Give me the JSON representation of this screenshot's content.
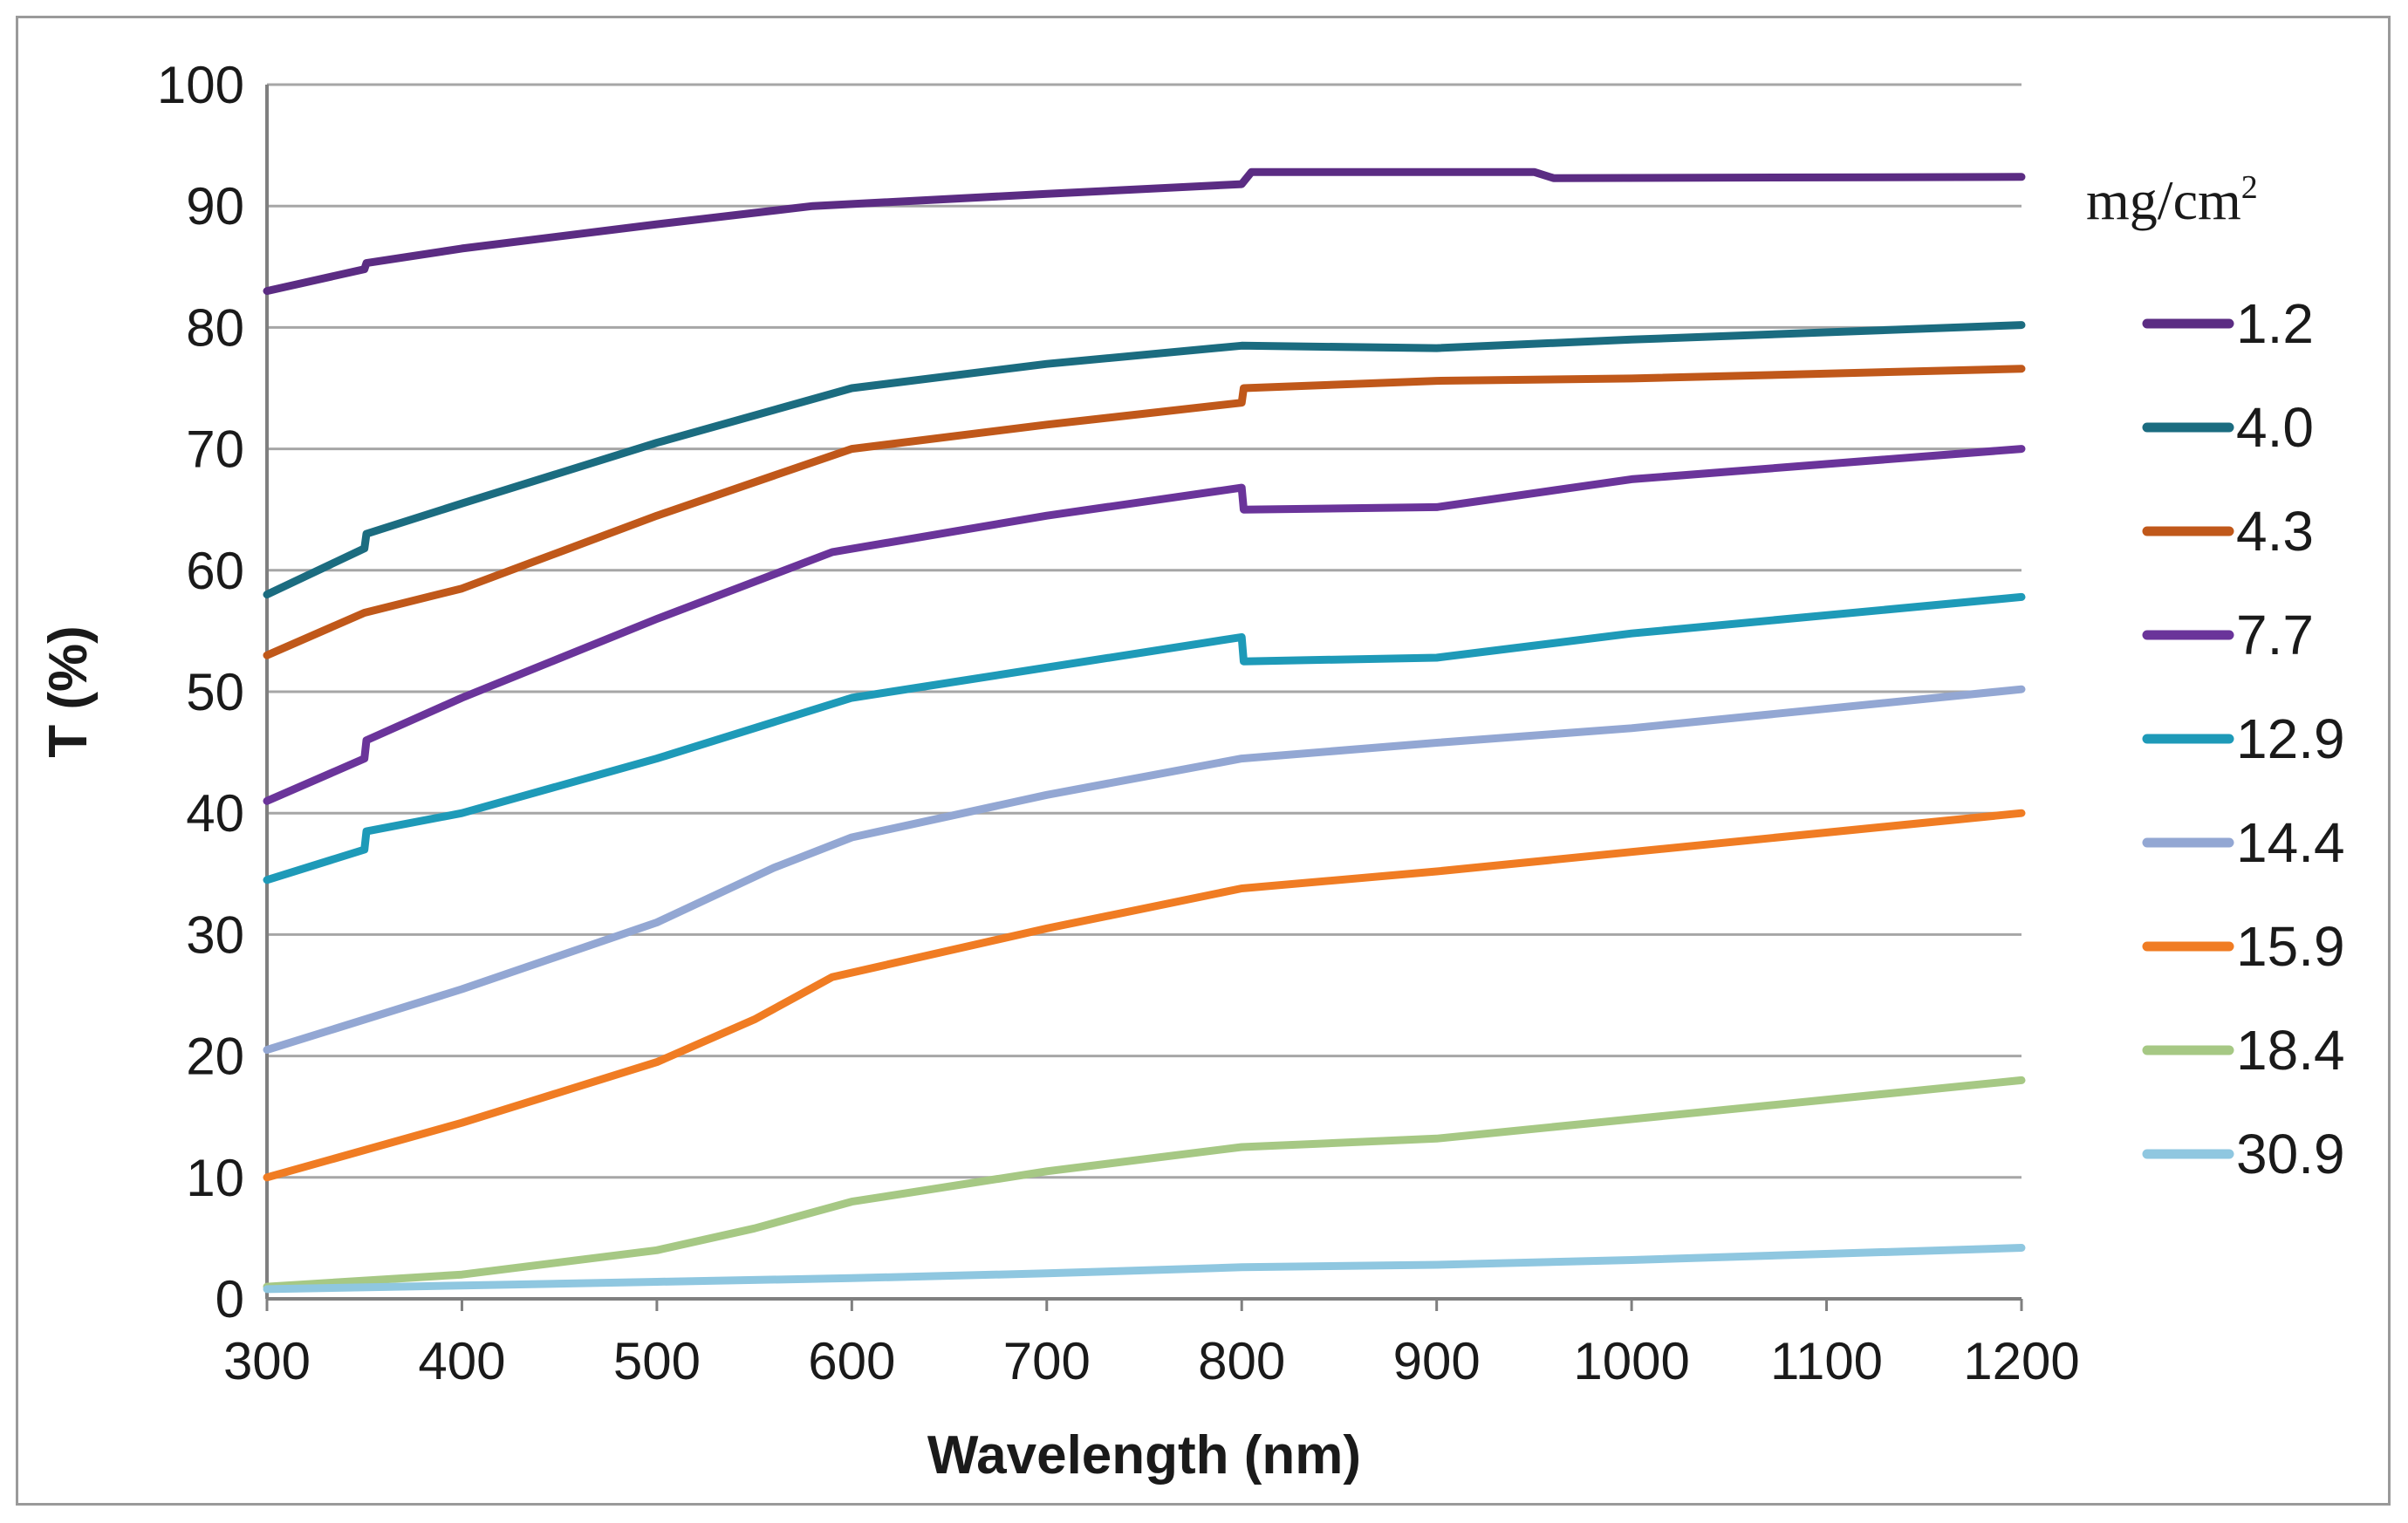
{
  "chart_data": {
    "type": "line",
    "title": "",
    "xlabel": "Wavelength (nm)",
    "ylabel": "T (%)",
    "xlim": [
      300,
      1200
    ],
    "ylim": [
      0,
      100
    ],
    "xticks": [
      300,
      400,
      500,
      600,
      700,
      800,
      900,
      1000,
      1100,
      1200
    ],
    "yticks": [
      0,
      10,
      20,
      30,
      40,
      50,
      60,
      70,
      80,
      90,
      100
    ],
    "grid": "horizontal",
    "legend": {
      "position": "right",
      "title": "mg/cm",
      "title_superscript": "2"
    },
    "series": [
      {
        "name": "1.2",
        "color": "#5B2C83",
        "x": [
          300,
          350,
          351,
          400,
          500,
          580,
          700,
          800,
          805,
          950,
          960,
          1200
        ],
        "y": [
          83,
          84.8,
          85.3,
          86.5,
          88.5,
          90,
          91,
          91.8,
          92.8,
          92.8,
          92.3,
          92.4
        ]
      },
      {
        "name": "4.0",
        "color": "#1B6C80",
        "x": [
          300,
          350,
          351,
          400,
          500,
          600,
          700,
          800,
          900,
          1000,
          1200
        ],
        "y": [
          58,
          61.8,
          63,
          65.5,
          70.5,
          75,
          77,
          78.5,
          78.3,
          79,
          80.2
        ]
      },
      {
        "name": "4.3",
        "color": "#C0581A",
        "x": [
          300,
          350,
          400,
          500,
          600,
          700,
          800,
          801,
          900,
          1000,
          1200
        ],
        "y": [
          53,
          56.5,
          58.5,
          64.5,
          70,
          72,
          73.8,
          75,
          75.6,
          75.8,
          76.6
        ]
      },
      {
        "name": "7.7",
        "color": "#6A349A",
        "x": [
          300,
          350,
          351,
          400,
          500,
          590,
          700,
          800,
          801,
          900,
          1000,
          1200
        ],
        "y": [
          41,
          44.5,
          46,
          49.5,
          56,
          61.5,
          64.5,
          66.8,
          65,
          65.2,
          67.5,
          70
        ]
      },
      {
        "name": "12.9",
        "color": "#1E9AB8",
        "x": [
          300,
          350,
          351,
          400,
          500,
          600,
          700,
          800,
          801,
          900,
          1000,
          1200
        ],
        "y": [
          34.5,
          37,
          38.5,
          40,
          44.5,
          49.5,
          52,
          54.5,
          52.5,
          52.8,
          54.8,
          57.8
        ]
      },
      {
        "name": "14.4",
        "color": "#93A7D3",
        "x": [
          300,
          400,
          500,
          560,
          600,
          700,
          800,
          900,
          1000,
          1200
        ],
        "y": [
          20.5,
          25.5,
          31,
          35.5,
          38,
          41.5,
          44.5,
          45.8,
          47,
          50.2
        ]
      },
      {
        "name": "15.9",
        "color": "#F07C23",
        "x": [
          300,
          400,
          500,
          550,
          590,
          700,
          800,
          900,
          1000,
          1200
        ],
        "y": [
          10,
          14.5,
          19.5,
          23,
          26.5,
          30.5,
          33.8,
          35.2,
          36.8,
          40
        ]
      },
      {
        "name": "18.4",
        "color": "#A6C884",
        "x": [
          300,
          400,
          500,
          550,
          600,
          700,
          800,
          900,
          1000,
          1200
        ],
        "y": [
          1,
          2,
          4,
          5.8,
          8,
          10.5,
          12.5,
          13.2,
          14.8,
          18
        ]
      },
      {
        "name": "30.9",
        "color": "#8FC7E0",
        "x": [
          300,
          400,
          500,
          600,
          700,
          800,
          900,
          1000,
          1200
        ],
        "y": [
          0.8,
          1.1,
          1.4,
          1.7,
          2.1,
          2.6,
          2.8,
          3.2,
          4.2
        ]
      }
    ]
  }
}
